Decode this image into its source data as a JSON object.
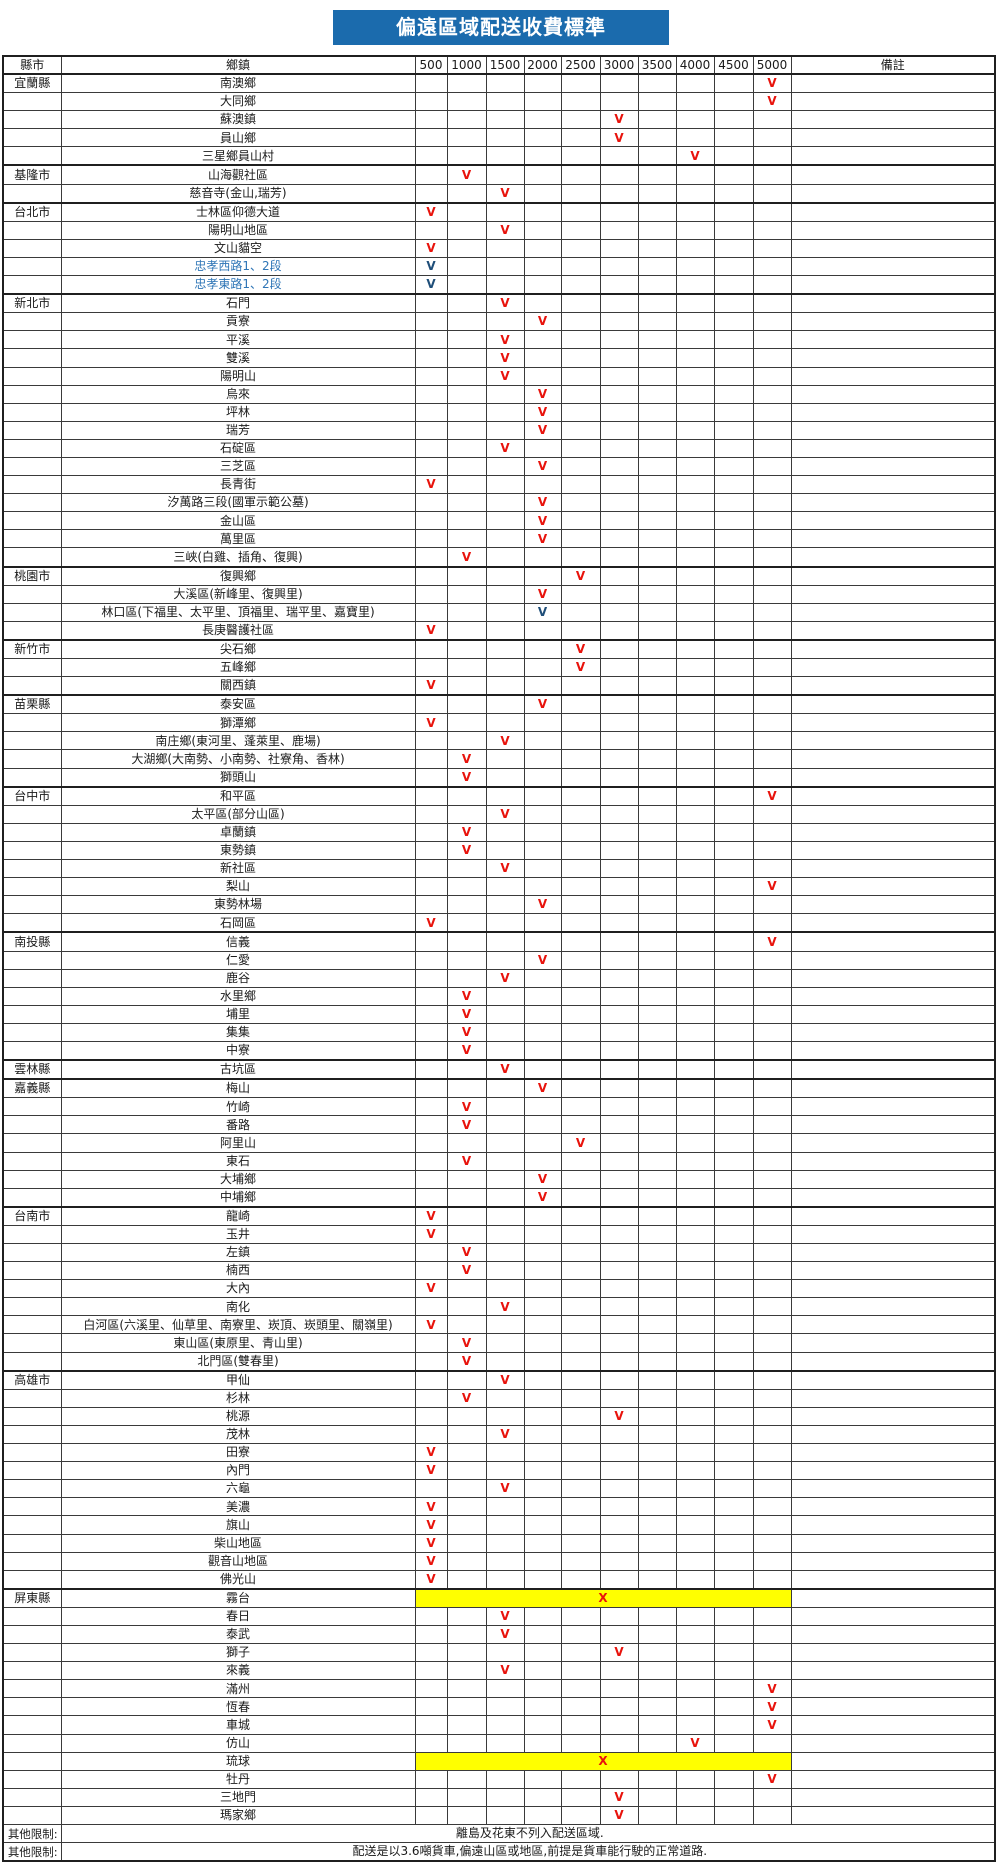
{
  "title": "偏遠區域配送收費標準",
  "colors": {
    "title_bg": "#1b6bad",
    "title_text": "#ffffff",
    "grid": "#3a3a3a",
    "mark_red": "#e8130c",
    "mark_navy": "#1f4e79",
    "township_blue": "#2e75b6",
    "highlight_yellow": "#ffff00"
  },
  "table": {
    "headers": [
      "縣市",
      "鄉鎮",
      "500",
      "1000",
      "1500",
      "2000",
      "2500",
      "3000",
      "3500",
      "4000",
      "4500",
      "5000",
      "備註"
    ],
    "price_columns": [
      "500",
      "1000",
      "1500",
      "2000",
      "2500",
      "3000",
      "3500",
      "4000",
      "4500",
      "5000"
    ],
    "rows": [
      {
        "county": "宜蘭縣",
        "township": "南澳鄉",
        "fee": "5000",
        "mark": "V",
        "mark_style": "red"
      },
      {
        "county": "",
        "township": "大同鄉",
        "fee": "5000",
        "mark": "V",
        "mark_style": "red"
      },
      {
        "county": "",
        "township": "蘇澳鎮",
        "fee": "3000",
        "mark": "V",
        "mark_style": "red"
      },
      {
        "county": "",
        "township": "員山鄉",
        "fee": "3000",
        "mark": "V",
        "mark_style": "red"
      },
      {
        "county": "",
        "township": "三星鄉員山村",
        "fee": "4000",
        "mark": "V",
        "mark_style": "red"
      },
      {
        "county": "基隆市",
        "township": "山海觀社區",
        "fee": "1000",
        "mark": "V",
        "mark_style": "red"
      },
      {
        "county": "",
        "township": "慈音寺(金山,瑞芳)",
        "fee": "1500",
        "mark": "V",
        "mark_style": "red"
      },
      {
        "county": "台北市",
        "township": "士林區仰德大道",
        "fee": "500",
        "mark": "V",
        "mark_style": "red"
      },
      {
        "county": "",
        "township": "陽明山地區",
        "fee": "1500",
        "mark": "V",
        "mark_style": "red"
      },
      {
        "county": "",
        "township": "文山貓空",
        "fee": "500",
        "mark": "V",
        "mark_style": "red"
      },
      {
        "county": "",
        "township": "忠孝西路1、2段",
        "fee": "500",
        "mark": "V",
        "mark_style": "navy",
        "township_style": "blue"
      },
      {
        "county": "",
        "township": "忠孝東路1、2段",
        "fee": "500",
        "mark": "V",
        "mark_style": "navy",
        "township_style": "blue"
      },
      {
        "county": "新北市",
        "township": "石門",
        "fee": "1500",
        "mark": "V",
        "mark_style": "red"
      },
      {
        "county": "",
        "township": "貢寮",
        "fee": "2000",
        "mark": "V",
        "mark_style": "red"
      },
      {
        "county": "",
        "township": "平溪",
        "fee": "1500",
        "mark": "V",
        "mark_style": "red"
      },
      {
        "county": "",
        "township": "雙溪",
        "fee": "1500",
        "mark": "V",
        "mark_style": "red"
      },
      {
        "county": "",
        "township": "陽明山",
        "fee": "1500",
        "mark": "V",
        "mark_style": "red"
      },
      {
        "county": "",
        "township": "烏來",
        "fee": "2000",
        "mark": "V",
        "mark_style": "red"
      },
      {
        "county": "",
        "township": "坪林",
        "fee": "2000",
        "mark": "V",
        "mark_style": "red"
      },
      {
        "county": "",
        "township": "瑞芳",
        "fee": "2000",
        "mark": "V",
        "mark_style": "red"
      },
      {
        "county": "",
        "township": "石碇區",
        "fee": "1500",
        "mark": "V",
        "mark_style": "red"
      },
      {
        "county": "",
        "township": "三芝區",
        "fee": "2000",
        "mark": "V",
        "mark_style": "red"
      },
      {
        "county": "",
        "township": "長青街",
        "fee": "500",
        "mark": "V",
        "mark_style": "red"
      },
      {
        "county": "",
        "township": "汐萬路三段(國軍示範公墓)",
        "fee": "2000",
        "mark": "V",
        "mark_style": "red"
      },
      {
        "county": "",
        "township": "金山區",
        "fee": "2000",
        "mark": "V",
        "mark_style": "red"
      },
      {
        "county": "",
        "township": "萬里區",
        "fee": "2000",
        "mark": "V",
        "mark_style": "red"
      },
      {
        "county": "",
        "township": "三峽(白雞、插角、復興)",
        "fee": "1000",
        "mark": "V",
        "mark_style": "red"
      },
      {
        "county": "桃園市",
        "township": "復興鄉",
        "fee": "2500",
        "mark": "V",
        "mark_style": "red"
      },
      {
        "county": "",
        "township": "大溪區(新峰里、復興里)",
        "fee": "2000",
        "mark": "V",
        "mark_style": "red"
      },
      {
        "county": "",
        "township": "林口區(下福里、太平里、頂福里、瑞平里、嘉寶里)",
        "fee": "2000",
        "mark": "V",
        "mark_style": "navy"
      },
      {
        "county": "",
        "township": "長庚醫護社區",
        "fee": "500",
        "mark": "V",
        "mark_style": "red"
      },
      {
        "county": "新竹市",
        "township": "尖石鄉",
        "fee": "2500",
        "mark": "V",
        "mark_style": "red"
      },
      {
        "county": "",
        "township": "五峰鄉",
        "fee": "2500",
        "mark": "V",
        "mark_style": "red"
      },
      {
        "county": "",
        "township": "關西鎮",
        "fee": "500",
        "mark": "V",
        "mark_style": "red"
      },
      {
        "county": "苗栗縣",
        "township": "泰安區",
        "fee": "2000",
        "mark": "V",
        "mark_style": "red"
      },
      {
        "county": "",
        "township": "獅潭鄉",
        "fee": "500",
        "mark": "V",
        "mark_style": "red"
      },
      {
        "county": "",
        "township": "南庄鄉(東河里、蓬萊里、鹿場)",
        "fee": "1500",
        "mark": "V",
        "mark_style": "red"
      },
      {
        "county": "",
        "township": "大湖鄉(大南勢、小南勢、社寮角、香林)",
        "fee": "1000",
        "mark": "V",
        "mark_style": "red"
      },
      {
        "county": "",
        "township": "獅頭山",
        "fee": "1000",
        "mark": "V",
        "mark_style": "red"
      },
      {
        "county": "台中市",
        "township": "和平區",
        "fee": "5000",
        "mark": "V",
        "mark_style": "red"
      },
      {
        "county": "",
        "township": "太平區(部分山區)",
        "fee": "1500",
        "mark": "V",
        "mark_style": "red"
      },
      {
        "county": "",
        "township": "卓蘭鎮",
        "fee": "1000",
        "mark": "V",
        "mark_style": "red"
      },
      {
        "county": "",
        "township": "東勢鎮",
        "fee": "1000",
        "mark": "V",
        "mark_style": "red"
      },
      {
        "county": "",
        "township": "新社區",
        "fee": "1500",
        "mark": "V",
        "mark_style": "red"
      },
      {
        "county": "",
        "township": "梨山",
        "fee": "5000",
        "mark": "V",
        "mark_style": "red"
      },
      {
        "county": "",
        "township": "東勢林場",
        "fee": "2000",
        "mark": "V",
        "mark_style": "red"
      },
      {
        "county": "",
        "township": "石岡區",
        "fee": "500",
        "mark": "V",
        "mark_style": "red"
      },
      {
        "county": "南投縣",
        "township": "信義",
        "fee": "5000",
        "mark": "V",
        "mark_style": "red"
      },
      {
        "county": "",
        "township": "仁愛",
        "fee": "2000",
        "mark": "V",
        "mark_style": "red"
      },
      {
        "county": "",
        "township": "鹿谷",
        "fee": "1500",
        "mark": "V",
        "mark_style": "red"
      },
      {
        "county": "",
        "township": "水里鄉",
        "fee": "1000",
        "mark": "V",
        "mark_style": "red"
      },
      {
        "county": "",
        "township": "埔里",
        "fee": "1000",
        "mark": "V",
        "mark_style": "red"
      },
      {
        "county": "",
        "township": "集集",
        "fee": "1000",
        "mark": "V",
        "mark_style": "red"
      },
      {
        "county": "",
        "township": "中寮",
        "fee": "1000",
        "mark": "V",
        "mark_style": "red"
      },
      {
        "county": "雲林縣",
        "township": "古坑區",
        "fee": "1500",
        "mark": "V",
        "mark_style": "red"
      },
      {
        "county": "嘉義縣",
        "township": "梅山",
        "fee": "2000",
        "mark": "V",
        "mark_style": "red"
      },
      {
        "county": "",
        "township": "竹崎",
        "fee": "1000",
        "mark": "V",
        "mark_style": "red"
      },
      {
        "county": "",
        "township": "番路",
        "fee": "1000",
        "mark": "V",
        "mark_style": "red"
      },
      {
        "county": "",
        "township": "阿里山",
        "fee": "2500",
        "mark": "V",
        "mark_style": "red"
      },
      {
        "county": "",
        "township": "東石",
        "fee": "1000",
        "mark": "V",
        "mark_style": "red"
      },
      {
        "county": "",
        "township": "大埔鄉",
        "fee": "2000",
        "mark": "V",
        "mark_style": "red"
      },
      {
        "county": "",
        "township": "中埔鄉",
        "fee": "2000",
        "mark": "V",
        "mark_style": "red"
      },
      {
        "county": "台南市",
        "township": "龍崎",
        "fee": "500",
        "mark": "V",
        "mark_style": "red"
      },
      {
        "county": "",
        "township": "玉井",
        "fee": "500",
        "mark": "V",
        "mark_style": "red"
      },
      {
        "county": "",
        "township": "左鎮",
        "fee": "1000",
        "mark": "V",
        "mark_style": "red"
      },
      {
        "county": "",
        "township": "楠西",
        "fee": "1000",
        "mark": "V",
        "mark_style": "red"
      },
      {
        "county": "",
        "township": "大內",
        "fee": "500",
        "mark": "V",
        "mark_style": "red"
      },
      {
        "county": "",
        "township": "南化",
        "fee": "1500",
        "mark": "V",
        "mark_style": "red"
      },
      {
        "county": "",
        "township": "白河區(六溪里、仙草里、南寮里、崁頂、崁頭里、關嶺里)",
        "fee": "500",
        "mark": "V",
        "mark_style": "red"
      },
      {
        "county": "",
        "township": "東山區(東原里、青山里)",
        "fee": "1000",
        "mark": "V",
        "mark_style": "red"
      },
      {
        "county": "",
        "township": "北門區(雙春里)",
        "fee": "1000",
        "mark": "V",
        "mark_style": "red"
      },
      {
        "county": "高雄市",
        "township": "甲仙",
        "fee": "1500",
        "mark": "V",
        "mark_style": "red"
      },
      {
        "county": "",
        "township": "杉林",
        "fee": "1000",
        "mark": "V",
        "mark_style": "red"
      },
      {
        "county": "",
        "township": "桃源",
        "fee": "3000",
        "mark": "V",
        "mark_style": "red"
      },
      {
        "county": "",
        "township": "茂林",
        "fee": "1500",
        "mark": "V",
        "mark_style": "red"
      },
      {
        "county": "",
        "township": "田寮",
        "fee": "500",
        "mark": "V",
        "mark_style": "red"
      },
      {
        "county": "",
        "township": "內門",
        "fee": "500",
        "mark": "V",
        "mark_style": "red"
      },
      {
        "county": "",
        "township": "六龜",
        "fee": "1500",
        "mark": "V",
        "mark_style": "red"
      },
      {
        "county": "",
        "township": "美濃",
        "fee": "500",
        "mark": "V",
        "mark_style": "red"
      },
      {
        "county": "",
        "township": "旗山",
        "fee": "500",
        "mark": "V",
        "mark_style": "red"
      },
      {
        "county": "",
        "township": "柴山地區",
        "fee": "500",
        "mark": "V",
        "mark_style": "red"
      },
      {
        "county": "",
        "township": "觀音山地區",
        "fee": "500",
        "mark": "V",
        "mark_style": "red"
      },
      {
        "county": "",
        "township": "佛光山",
        "fee": "500",
        "mark": "V",
        "mark_style": "red"
      },
      {
        "county": "屏東縣",
        "township": "霧台",
        "fee": "",
        "mark": "X",
        "mark_style": "red",
        "highlight": true
      },
      {
        "county": "",
        "township": "春日",
        "fee": "1500",
        "mark": "V",
        "mark_style": "red"
      },
      {
        "county": "",
        "township": "泰武",
        "fee": "1500",
        "mark": "V",
        "mark_style": "red"
      },
      {
        "county": "",
        "township": "獅子",
        "fee": "3000",
        "mark": "V",
        "mark_style": "red"
      },
      {
        "county": "",
        "township": "來義",
        "fee": "1500",
        "mark": "V",
        "mark_style": "red"
      },
      {
        "county": "",
        "township": "滿州",
        "fee": "5000",
        "mark": "V",
        "mark_style": "red"
      },
      {
        "county": "",
        "township": "恆春",
        "fee": "5000",
        "mark": "V",
        "mark_style": "red"
      },
      {
        "county": "",
        "township": "車城",
        "fee": "5000",
        "mark": "V",
        "mark_style": "red"
      },
      {
        "county": "",
        "township": "仿山",
        "fee": "4000",
        "mark": "V",
        "mark_style": "red"
      },
      {
        "county": "",
        "township": "琉球",
        "fee": "",
        "mark": "X",
        "mark_style": "red",
        "highlight": true
      },
      {
        "county": "",
        "township": "牡丹",
        "fee": "5000",
        "mark": "V",
        "mark_style": "red"
      },
      {
        "county": "",
        "township": "三地門",
        "fee": "3000",
        "mark": "V",
        "mark_style": "red"
      },
      {
        "county": "",
        "township": "瑪家鄉",
        "fee": "3000",
        "mark": "V",
        "mark_style": "red"
      }
    ],
    "notes": [
      {
        "label": "其他限制:",
        "text": "離島及花東不列入配送區域."
      },
      {
        "label": "其他限制:",
        "text": "配送是以3.6噸貨車,偏遠山區或地區,前提是貨車能行駛的正常道路."
      }
    ]
  }
}
